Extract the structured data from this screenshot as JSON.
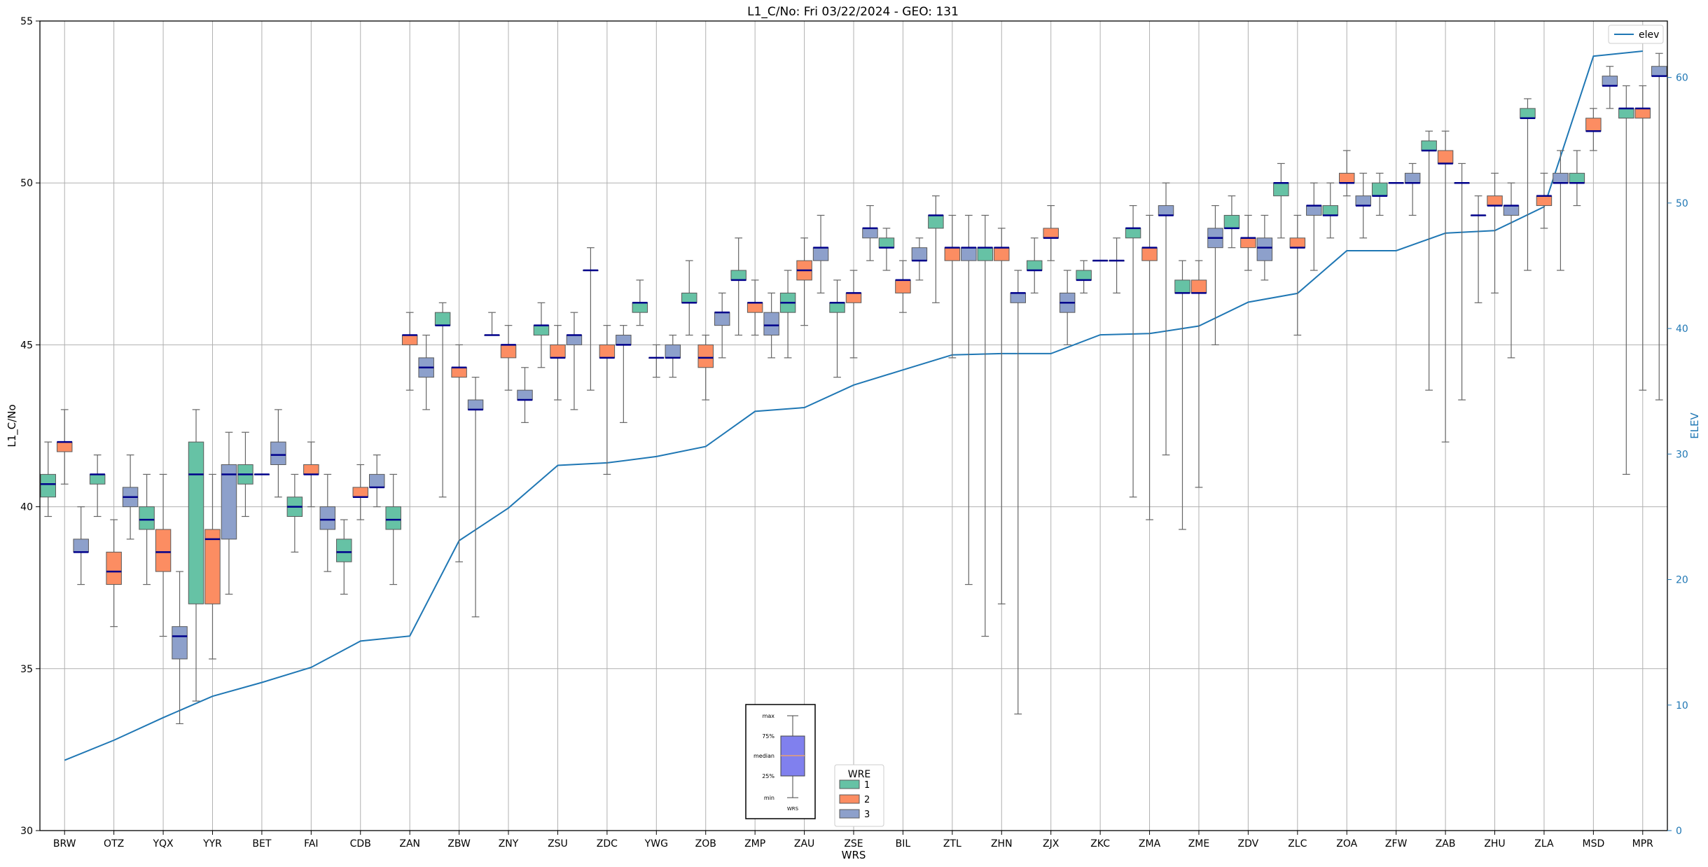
{
  "chart_data": {
    "type": "box",
    "title": "L1_C/No: Fri 03/22/2024 - GEO: 131",
    "xlabel": "WRS",
    "ylabel": "L1_C/No",
    "y2label": "ELEV",
    "ylim": [
      30,
      55
    ],
    "y2lim": [
      0,
      64.5
    ],
    "yticks": [
      "30",
      "35",
      "40",
      "45",
      "50",
      "55"
    ],
    "y2ticks": [
      "0",
      "10",
      "20",
      "30",
      "40",
      "50",
      "60"
    ],
    "grid": true,
    "categories": [
      "BRW",
      "OTZ",
      "YQX",
      "YYR",
      "BET",
      "FAI",
      "CDB",
      "ZAN",
      "ZBW",
      "ZNY",
      "ZSU",
      "ZDC",
      "YWG",
      "ZOB",
      "ZMP",
      "ZAU",
      "ZSE",
      "BIL",
      "ZTL",
      "ZHN",
      "ZJX",
      "ZKC",
      "ZMA",
      "ZME",
      "ZDV",
      "ZLC",
      "ZOA",
      "ZFW",
      "ZAB",
      "ZHU",
      "ZLA",
      "MSD",
      "MPR"
    ],
    "legend_title": "WRE",
    "legend_placement": "bottom-center",
    "series": [
      {
        "name": "1",
        "color": "#66c2a5",
        "boxes": [
          [
            39.7,
            40.3,
            40.7,
            41.0,
            42.0
          ],
          [
            39.7,
            40.7,
            41.0,
            41.0,
            41.6
          ],
          [
            37.6,
            39.3,
            39.6,
            40.0,
            41.0
          ],
          [
            34.0,
            37.0,
            41.0,
            42.0,
            43.0
          ],
          [
            39.7,
            40.7,
            41.0,
            41.3,
            42.3
          ],
          [
            38.6,
            39.7,
            40.0,
            40.3,
            41.0
          ],
          [
            37.3,
            38.3,
            38.6,
            39.0,
            39.6
          ],
          [
            37.6,
            39.3,
            39.6,
            40.0,
            41.0
          ],
          [
            40.3,
            45.6,
            45.6,
            46.0,
            46.3
          ],
          [
            45.3,
            45.3,
            45.3,
            45.3,
            46.0
          ],
          [
            44.3,
            45.3,
            45.6,
            45.6,
            46.3
          ],
          [
            43.6,
            47.3,
            47.3,
            47.3,
            48.0
          ],
          [
            45.6,
            46.0,
            46.3,
            46.3,
            47.0
          ],
          [
            45.3,
            46.3,
            46.3,
            46.6,
            47.6
          ],
          [
            45.3,
            47.0,
            47.0,
            47.3,
            48.3
          ],
          [
            44.6,
            46.0,
            46.3,
            46.6,
            47.3
          ],
          [
            44.0,
            46.0,
            46.3,
            46.3,
            47.0
          ],
          [
            47.3,
            48.0,
            48.0,
            48.3,
            48.6
          ],
          [
            46.3,
            48.6,
            49.0,
            49.0,
            49.6
          ],
          [
            36.0,
            47.6,
            48.0,
            48.0,
            49.0
          ],
          [
            46.6,
            47.3,
            47.3,
            47.6,
            48.3
          ],
          [
            46.6,
            47.0,
            47.0,
            47.3,
            47.6
          ],
          [
            40.3,
            48.3,
            48.6,
            48.6,
            49.3
          ],
          [
            39.3,
            46.6,
            46.6,
            47.0,
            47.6
          ],
          [
            48.0,
            48.6,
            48.6,
            49.0,
            49.6
          ],
          [
            48.3,
            49.6,
            50.0,
            50.0,
            50.6
          ],
          [
            48.3,
            49.0,
            49.0,
            49.3,
            50.0
          ],
          [
            49.0,
            49.6,
            49.6,
            50.0,
            50.3
          ],
          [
            43.6,
            51.0,
            51.0,
            51.3,
            51.6
          ],
          [
            46.3,
            49.0,
            49.0,
            49.0,
            49.6
          ],
          [
            47.3,
            52.0,
            52.0,
            52.3,
            52.6
          ],
          [
            49.3,
            50.0,
            50.0,
            50.3,
            51.0
          ],
          [
            41.0,
            52.0,
            52.3,
            52.3,
            53.0
          ]
        ]
      },
      {
        "name": "2",
        "color": "#fc8d62",
        "boxes": [
          [
            40.7,
            41.7,
            42.0,
            42.0,
            43.0
          ],
          [
            36.3,
            37.6,
            38.0,
            38.6,
            39.6
          ],
          [
            36.0,
            38.0,
            38.6,
            39.3,
            41.0
          ],
          [
            35.3,
            37.0,
            39.0,
            39.3,
            41.0
          ],
          [
            41.0,
            41.0,
            41.0,
            41.0,
            41.0
          ],
          [
            40.0,
            41.0,
            41.0,
            41.3,
            42.0
          ],
          [
            39.6,
            40.3,
            40.3,
            40.6,
            41.3
          ],
          [
            43.6,
            45.0,
            45.3,
            45.3,
            46.0
          ],
          [
            38.3,
            44.0,
            44.3,
            44.3,
            45.0
          ],
          [
            43.6,
            44.6,
            45.0,
            45.0,
            45.6
          ],
          [
            43.3,
            44.6,
            44.6,
            45.0,
            45.6
          ],
          [
            41.0,
            44.6,
            44.6,
            45.0,
            45.6
          ],
          [
            44.0,
            44.6,
            44.6,
            44.6,
            45.0
          ],
          [
            43.3,
            44.3,
            44.6,
            45.0,
            45.3
          ],
          [
            45.3,
            46.0,
            46.3,
            46.3,
            47.0
          ],
          [
            45.6,
            47.0,
            47.3,
            47.6,
            48.3
          ],
          [
            44.6,
            46.3,
            46.6,
            46.6,
            47.3
          ],
          [
            46.0,
            46.6,
            47.0,
            47.0,
            47.6
          ],
          [
            44.6,
            47.6,
            48.0,
            48.0,
            49.0
          ],
          [
            37.0,
            47.6,
            48.0,
            48.0,
            48.6
          ],
          [
            47.6,
            48.3,
            48.3,
            48.6,
            49.3
          ],
          [
            47.6,
            47.6,
            47.6,
            47.6,
            47.6
          ],
          [
            39.6,
            47.6,
            48.0,
            48.0,
            49.0
          ],
          [
            40.6,
            46.6,
            46.6,
            47.0,
            47.6
          ],
          [
            47.3,
            48.0,
            48.3,
            48.3,
            49.0
          ],
          [
            45.3,
            48.0,
            48.0,
            48.3,
            49.0
          ],
          [
            49.6,
            50.0,
            50.0,
            50.3,
            51.0
          ],
          [
            50.0,
            50.0,
            50.0,
            50.0,
            50.0
          ],
          [
            42.0,
            50.6,
            50.6,
            51.0,
            51.6
          ],
          [
            46.6,
            49.3,
            49.3,
            49.6,
            50.3
          ],
          [
            48.6,
            49.3,
            49.6,
            49.6,
            50.3
          ],
          [
            51.0,
            51.6,
            51.6,
            52.0,
            52.3
          ],
          [
            43.6,
            52.0,
            52.3,
            52.3,
            53.0
          ]
        ]
      },
      {
        "name": "3",
        "color": "#8da0cb",
        "boxes": [
          [
            37.6,
            38.6,
            38.6,
            39.0,
            40.0
          ],
          [
            39.0,
            40.0,
            40.3,
            40.6,
            41.6
          ],
          [
            33.3,
            35.3,
            36.0,
            36.3,
            38.0
          ],
          [
            37.3,
            39.0,
            41.0,
            41.3,
            42.3
          ],
          [
            40.3,
            41.3,
            41.6,
            42.0,
            43.0
          ],
          [
            38.0,
            39.3,
            39.6,
            40.0,
            41.0
          ],
          [
            40.0,
            40.6,
            40.6,
            41.0,
            41.6
          ],
          [
            43.0,
            44.0,
            44.3,
            44.6,
            45.3
          ],
          [
            36.6,
            43.0,
            43.0,
            43.3,
            44.0
          ],
          [
            42.6,
            43.3,
            43.3,
            43.6,
            44.3
          ],
          [
            43.0,
            45.0,
            45.3,
            45.3,
            46.0
          ],
          [
            42.6,
            45.0,
            45.0,
            45.3,
            45.6
          ],
          [
            44.0,
            44.6,
            44.6,
            45.0,
            45.3
          ],
          [
            44.6,
            45.6,
            46.0,
            46.0,
            46.6
          ],
          [
            44.6,
            45.3,
            45.6,
            46.0,
            46.6
          ],
          [
            46.6,
            47.6,
            48.0,
            48.0,
            49.0
          ],
          [
            47.6,
            48.3,
            48.6,
            48.6,
            49.3
          ],
          [
            47.0,
            47.6,
            47.6,
            48.0,
            48.3
          ],
          [
            37.6,
            47.6,
            48.0,
            48.0,
            49.0
          ],
          [
            33.6,
            46.3,
            46.6,
            46.6,
            47.3
          ],
          [
            45.0,
            46.0,
            46.3,
            46.6,
            47.3
          ],
          [
            46.6,
            47.6,
            47.6,
            47.6,
            48.3
          ],
          [
            41.6,
            49.0,
            49.0,
            49.3,
            50.0
          ],
          [
            45.0,
            48.0,
            48.3,
            48.6,
            49.3
          ],
          [
            47.0,
            47.6,
            48.0,
            48.3,
            49.0
          ],
          [
            47.3,
            49.0,
            49.3,
            49.3,
            50.0
          ],
          [
            48.3,
            49.3,
            49.3,
            49.6,
            50.3
          ],
          [
            49.0,
            50.0,
            50.0,
            50.3,
            50.6
          ],
          [
            43.3,
            50.0,
            50.0,
            50.0,
            50.6
          ],
          [
            44.6,
            49.0,
            49.3,
            49.3,
            50.0
          ],
          [
            47.3,
            50.0,
            50.0,
            50.3,
            51.0
          ],
          [
            52.3,
            53.0,
            53.0,
            53.3,
            53.6
          ],
          [
            43.3,
            53.3,
            53.3,
            53.6,
            54.0
          ]
        ]
      }
    ],
    "elev_series": {
      "name": "elev",
      "color": "#1f77b4",
      "values": [
        5.6,
        7.2,
        9.0,
        10.7,
        11.8,
        13.0,
        15.1,
        15.5,
        23.1,
        25.7,
        29.1,
        29.3,
        29.8,
        30.6,
        33.4,
        33.7,
        35.5,
        36.7,
        37.9,
        38.0,
        38.0,
        39.5,
        39.6,
        40.2,
        42.1,
        42.8,
        46.2,
        46.2,
        47.6,
        47.8,
        49.7,
        61.7,
        62.1
      ]
    },
    "inset_legend": {
      "labels": [
        "max",
        "75%",
        "median",
        "25%",
        "min"
      ],
      "xlabel": "WRS"
    }
  }
}
